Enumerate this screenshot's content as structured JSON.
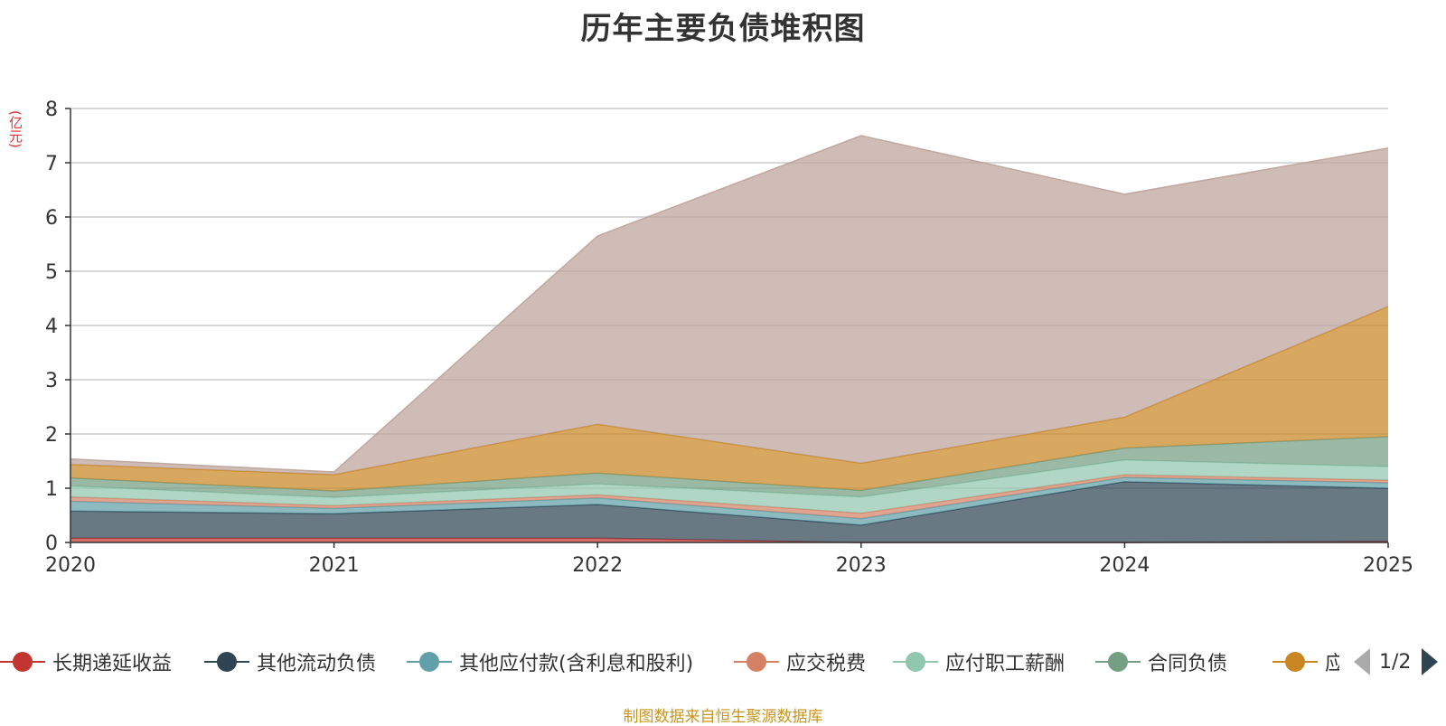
{
  "chart_data": {
    "type": "area",
    "stacked": true,
    "title": "历年主要负债堆积图",
    "ylabel": "(亿元)",
    "x": [
      "2020",
      "2021",
      "2022",
      "2023",
      "2024",
      "2025"
    ],
    "ylim": [
      0,
      8
    ],
    "yticks": [
      "0",
      "1",
      "2",
      "3",
      "4",
      "5",
      "6",
      "7",
      "8"
    ],
    "grid": true,
    "series": [
      {
        "name": "长期递延收益",
        "color": "#c23531",
        "values": [
          0.08,
          0.08,
          0.08,
          0.0,
          0.0,
          0.02
        ]
      },
      {
        "name": "其他流动负债",
        "color": "#2f4554",
        "values": [
          0.5,
          0.45,
          0.62,
          0.32,
          1.12,
          0.98
        ]
      },
      {
        "name": "其他应付款(含利息和股利)",
        "color": "#61a0a8",
        "values": [
          0.18,
          0.1,
          0.12,
          0.12,
          0.08,
          0.1
        ]
      },
      {
        "name": "应交税费",
        "color": "#d48265",
        "values": [
          0.08,
          0.05,
          0.06,
          0.1,
          0.05,
          0.05
        ]
      },
      {
        "name": "应付职工薪酬",
        "color": "#91c7ae",
        "values": [
          0.2,
          0.15,
          0.2,
          0.3,
          0.27,
          0.25
        ]
      },
      {
        "name": "合同负债",
        "color": "#749f83",
        "values": [
          0.15,
          0.12,
          0.2,
          0.12,
          0.22,
          0.55
        ]
      },
      {
        "name": "应付账款",
        "color": "#ca8622",
        "values": [
          0.25,
          0.3,
          0.9,
          0.5,
          0.57,
          2.4
        ]
      },
      {
        "name": "",
        "color": "#bda29a",
        "values": [
          0.1,
          0.05,
          3.47,
          6.04,
          4.11,
          2.92
        ]
      }
    ],
    "legend": {
      "position": "bottom",
      "page": "1/2"
    }
  },
  "source_note": "制图数据来自恒生聚源数据库"
}
